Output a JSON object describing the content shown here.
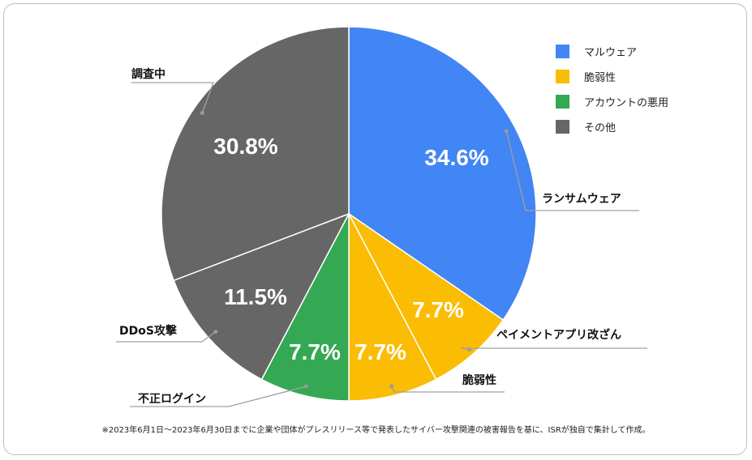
{
  "chart_data": {
    "type": "pie",
    "legend": [
      {
        "label": "マルウェア",
        "color": "#4285f4"
      },
      {
        "label": "脆弱性",
        "color": "#fbbc04"
      },
      {
        "label": "アカウントの悪用",
        "color": "#34a853"
      },
      {
        "label": "その他",
        "color": "#666666"
      }
    ],
    "legend_position": "top-right",
    "slices": [
      {
        "label": "ランサムウェア",
        "pct_label": "34.6%",
        "value": 34.6,
        "color": "#4285f4"
      },
      {
        "label": "ペイメントアプリ改ざん",
        "pct_label": "7.7%",
        "value": 7.7,
        "color": "#fbbc04"
      },
      {
        "label": "脆弱性",
        "pct_label": "7.7%",
        "value": 7.7,
        "color": "#fbbc04"
      },
      {
        "label": "不正ログイン",
        "pct_label": "7.7%",
        "value": 7.7,
        "color": "#34a853"
      },
      {
        "label": "DDoS攻撃",
        "pct_label": "11.5%",
        "value": 11.5,
        "color": "#666666"
      },
      {
        "label": "調査中",
        "pct_label": "30.8%",
        "value": 30.8,
        "color": "#666666"
      }
    ]
  },
  "footnote": "※2023年6月1日～2023年6月30日までに企業や団体がプレスリリース等で発表したサイバー攻撃関連の被害報告を基に、ISRが独自で集計して作成。"
}
